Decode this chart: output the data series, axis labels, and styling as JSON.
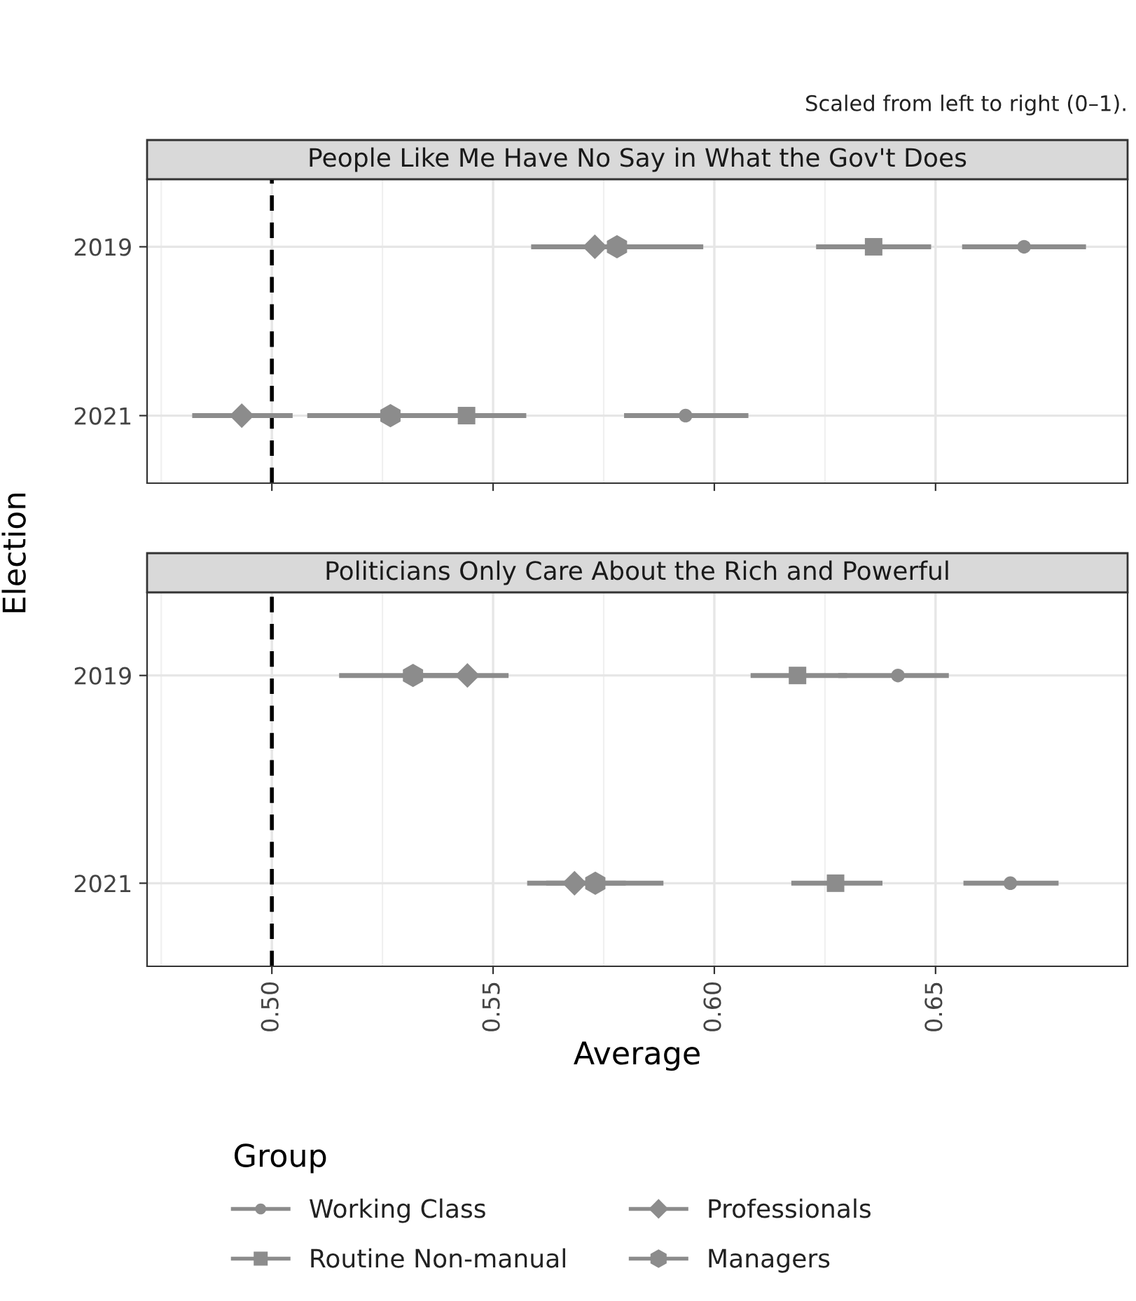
{
  "chart_data": [
    {
      "type": "scatter",
      "title": "People Like Me Have No Say in What the Gov't Does",
      "ylabel": "Election",
      "annotations": [
        "Scaled from left to right (0–1)."
      ],
      "orientation": "horizontal",
      "categories": [
        "2019",
        "2021"
      ],
      "xlim": [
        0.4718,
        0.6934
      ],
      "xticks": [
        {
          "value": 0.5,
          "label": null
        },
        {
          "value": 0.55,
          "label": null
        },
        {
          "value": 0.6,
          "label": null
        },
        {
          "value": 0.65,
          "label": null
        }
      ],
      "tick_labels": "y",
      "grid": true,
      "legend": "bottom",
      "legend_title": "Group",
      "ref_lines": [
        {
          "axis": "x",
          "value": 0.5,
          "color": "#000000",
          "line_style": "dashed"
        }
      ],
      "series": [
        {
          "name": "Working Class",
          "color": "#8c8c8c",
          "marker": "circle",
          "values": [
            0.67,
            0.5935
          ],
          "errors": [
            [
              0.656,
              0.684
            ],
            [
              0.5796,
              0.6077
            ]
          ]
        },
        {
          "name": "Routine Non-manual",
          "color": "#8c8c8c",
          "marker": "square",
          "values": [
            0.636,
            0.544
          ],
          "errors": [
            [
              0.623,
              0.649
            ],
            [
              0.53,
              0.5575
            ]
          ]
        },
        {
          "name": "Professionals",
          "color": "#8c8c8c",
          "marker": "diamond",
          "values": [
            0.573,
            0.4932
          ],
          "errors": [
            [
              0.5586,
              0.588
            ],
            [
              0.482,
              0.5047
            ]
          ]
        },
        {
          "name": "Managers",
          "color": "#8c8c8c",
          "values": [
            0.578,
            0.5268
          ],
          "errors": [
            [
              0.565,
              0.5975
            ],
            [
              0.508,
              0.545
            ]
          ]
        }
      ]
    },
    {
      "type": "scatter",
      "title": "Politicians Only Care About the Rich and Powerful",
      "xlabel": "Average",
      "orientation": "horizontal",
      "categories": [
        "2019",
        "2021"
      ],
      "xlim": [
        0.4718,
        0.6934
      ],
      "xticks": [
        {
          "value": 0.5,
          "label": "0.50"
        },
        {
          "value": 0.55,
          "label": "0.55"
        },
        {
          "value": 0.6,
          "label": "0.60"
        },
        {
          "value": 0.65,
          "label": "0.65"
        }
      ],
      "grid": true,
      "ref_lines": [
        {
          "axis": "x",
          "value": 0.5,
          "color": "#000000",
          "line_style": "dashed"
        }
      ],
      "series": [
        {
          "color": "#8c8c8c",
          "marker": "circle",
          "values": [
            0.6415,
            0.6669
          ],
          "errors": [
            [
              0.628,
              0.653
            ],
            [
              0.6563,
              0.6778
            ]
          ]
        },
        {
          "color": "#8c8c8c",
          "marker": "square",
          "values": [
            0.6188,
            0.6274
          ],
          "errors": [
            [
              0.6082,
              0.63
            ],
            [
              0.6174,
              0.638
            ]
          ]
        },
        {
          "color": "#8c8c8c",
          "marker": "diamond",
          "values": [
            0.5442,
            0.5684
          ],
          "errors": [
            [
              0.53,
              0.5535
            ],
            [
              0.5577,
              0.58
            ]
          ]
        },
        {
          "color": "#8c8c8c",
          "values": [
            0.5319,
            0.5731
          ],
          "errors": [
            [
              0.5152,
              0.545
            ],
            [
              0.562,
              0.5885
            ]
          ]
        }
      ]
    }
  ]
}
